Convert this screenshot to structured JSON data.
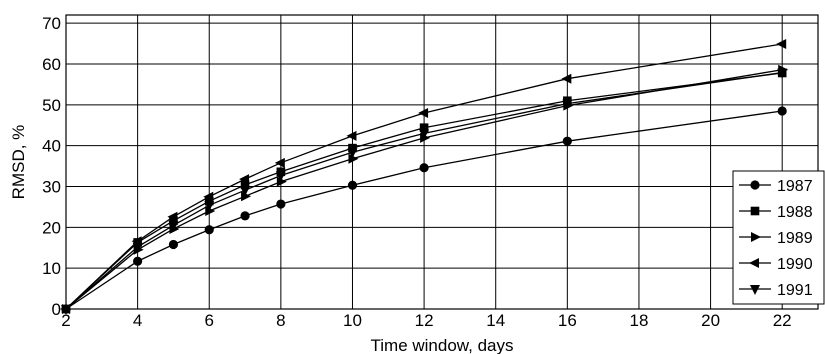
{
  "chart_data": {
    "type": "line",
    "title": "",
    "xlabel": "Time window, days",
    "ylabel": "RMSD, %",
    "xlim": [
      2,
      23
    ],
    "ylim": [
      0,
      72
    ],
    "x_ticks": [
      2,
      4,
      6,
      8,
      10,
      12,
      14,
      16,
      18,
      20,
      22
    ],
    "y_ticks": [
      0,
      10,
      20,
      30,
      40,
      50,
      60,
      70
    ],
    "grid": true,
    "legend_position": "right",
    "x": [
      2,
      4,
      5,
      6,
      7,
      8,
      10,
      12,
      16,
      22
    ],
    "series": [
      {
        "name": "1987",
        "marker": "circle",
        "values": [
          0,
          11.7,
          15.8,
          19.4,
          22.8,
          25.7,
          30.3,
          34.6,
          41.1,
          48.5
        ]
      },
      {
        "name": "1988",
        "marker": "square",
        "values": [
          0,
          16.3,
          21.6,
          26.4,
          30.4,
          33.6,
          39.4,
          44.4,
          51.0,
          57.8
        ]
      },
      {
        "name": "1989",
        "marker": "triangle-right",
        "values": [
          0,
          14.5,
          19.6,
          24.0,
          27.6,
          31.2,
          36.8,
          41.9,
          49.8,
          58.6
        ]
      },
      {
        "name": "1990",
        "marker": "triangle-left",
        "values": [
          0,
          16.6,
          22.6,
          27.5,
          31.8,
          35.8,
          42.4,
          48.0,
          56.4,
          64.9
        ]
      },
      {
        "name": "1991",
        "marker": "triangle-down",
        "values": [
          0,
          15.2,
          20.5,
          25.4,
          29.1,
          32.7,
          38.4,
          43.0,
          50.3,
          57.9
        ]
      }
    ]
  }
}
